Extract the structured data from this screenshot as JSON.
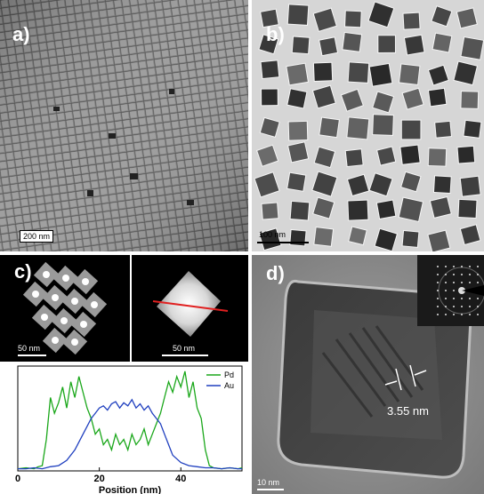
{
  "panels": {
    "a": {
      "label": "a)",
      "scale": "200 nm"
    },
    "b": {
      "label": "b)",
      "scale": "100 nm"
    },
    "c": {
      "label": "c)",
      "scale_left": "50 nm",
      "scale_right": "50 nm"
    },
    "d": {
      "label": "d)",
      "scale": "10 nm",
      "lattice": "3.55 nm"
    }
  },
  "colors": {
    "pd": "#1aa71a",
    "au": "#1f3fbf",
    "line": "#e02020"
  },
  "chart_data": {
    "type": "line",
    "xlabel": "Position (nm)",
    "ylabel": "",
    "xticks": [
      0,
      20,
      40
    ],
    "xlim": [
      0,
      55
    ],
    "ylim": [
      0,
      1
    ],
    "legend_position": "top-right",
    "series": [
      {
        "name": "Pd",
        "x": [
          0,
          2,
          4,
          5,
          6,
          7,
          8,
          9,
          10,
          11,
          12,
          13,
          14,
          15,
          16,
          17,
          18,
          19,
          20,
          21,
          22,
          23,
          24,
          25,
          26,
          27,
          28,
          29,
          30,
          31,
          32,
          33,
          34,
          35,
          36,
          37,
          38,
          39,
          40,
          41,
          42,
          43,
          44,
          45,
          46,
          47,
          48,
          50,
          52,
          54,
          55
        ],
        "values": [
          0.02,
          0.03,
          0.02,
          0.04,
          0.05,
          0.3,
          0.7,
          0.55,
          0.65,
          0.8,
          0.6,
          0.85,
          0.7,
          0.9,
          0.75,
          0.6,
          0.5,
          0.35,
          0.4,
          0.25,
          0.3,
          0.2,
          0.35,
          0.25,
          0.3,
          0.2,
          0.35,
          0.25,
          0.3,
          0.4,
          0.25,
          0.35,
          0.45,
          0.55,
          0.7,
          0.85,
          0.75,
          0.9,
          0.8,
          0.95,
          0.7,
          0.85,
          0.6,
          0.5,
          0.2,
          0.05,
          0.03,
          0.02,
          0.03,
          0.02,
          0.03
        ]
      },
      {
        "name": "Au",
        "x": [
          0,
          2,
          4,
          6,
          8,
          10,
          12,
          14,
          16,
          18,
          19,
          20,
          21,
          22,
          23,
          24,
          25,
          26,
          27,
          28,
          29,
          30,
          31,
          32,
          33,
          34,
          35,
          36,
          37,
          38,
          40,
          42,
          44,
          46,
          48,
          50,
          52,
          54,
          55
        ],
        "values": [
          0.02,
          0.02,
          0.03,
          0.02,
          0.04,
          0.05,
          0.1,
          0.2,
          0.35,
          0.5,
          0.55,
          0.6,
          0.62,
          0.58,
          0.64,
          0.66,
          0.6,
          0.65,
          0.62,
          0.68,
          0.6,
          0.64,
          0.58,
          0.62,
          0.55,
          0.5,
          0.45,
          0.35,
          0.25,
          0.15,
          0.08,
          0.05,
          0.04,
          0.03,
          0.03,
          0.02,
          0.03,
          0.02,
          0.02
        ]
      }
    ]
  }
}
